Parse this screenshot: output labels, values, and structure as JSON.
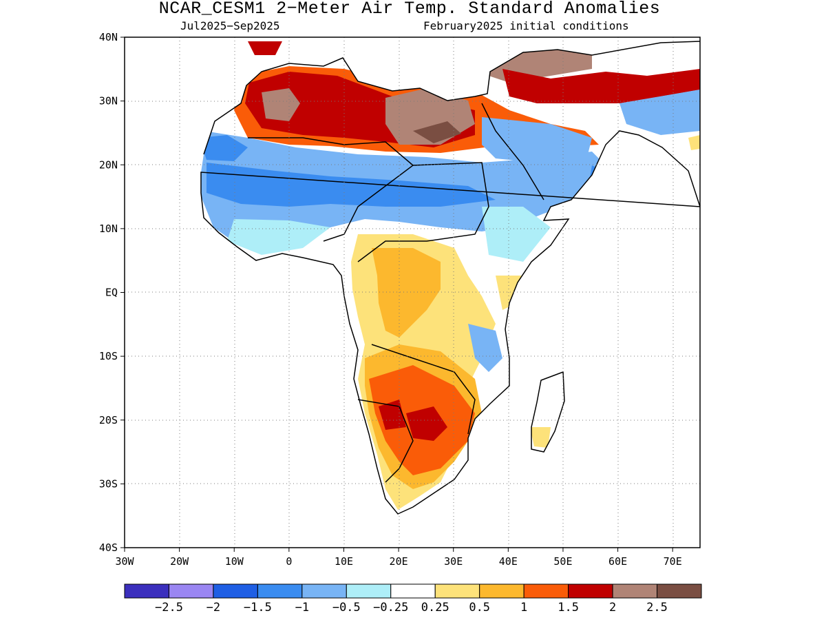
{
  "title": "NCAR_CESM1 2−Meter Air Temp. Standard Anomalies",
  "period": "Jul2025−Sep2025",
  "init": "February2025 initial conditions",
  "map": {
    "lat_labels": [
      "40N",
      "30N",
      "20N",
      "10N",
      "EQ",
      "10S",
      "20S",
      "30S",
      "40S"
    ],
    "lon_labels": [
      "30W",
      "20W",
      "10W",
      "0",
      "10E",
      "20E",
      "30E",
      "40E",
      "50E",
      "60E",
      "70E"
    ],
    "lat_range": [
      -40,
      40
    ],
    "lon_range": [
      -30,
      75
    ]
  },
  "legend": {
    "colors": [
      "#3b2fbd",
      "#9a86f2",
      "#1f5fe4",
      "#3a8cf0",
      "#78b4f5",
      "#aeeef8",
      "#ffffff",
      "#fde27a",
      "#fcb82e",
      "#fa5c08",
      "#c00000",
      "#b08476",
      "#7a4e42"
    ],
    "labels": [
      "−2.5",
      "−2",
      "−1.5",
      "−1",
      "−0.5",
      "−0.25",
      "0.25",
      "0.5",
      "1",
      "1.5",
      "2",
      "2.5"
    ]
  }
}
